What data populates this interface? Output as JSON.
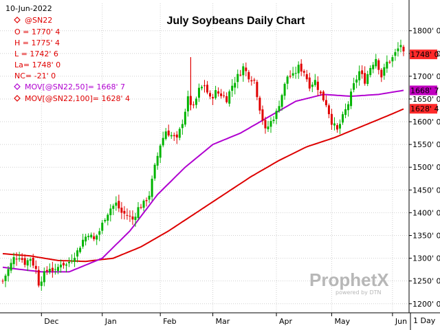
{
  "chart_data": {
    "type": "candlestick",
    "title": "July Soybeans Daily Chart",
    "date": "10-Jun-2022",
    "symbol": "@SN22",
    "open": "O = 1770' 4",
    "high": "H = 1775' 4",
    "low": "L = 1742' 6",
    "last": "La= 1748' 0",
    "net_change": "NC= -21' 0",
    "mov50_label": "MOV[@SN22,50]= 1668' 7",
    "mov100_label": "MOV[@SN22,100]= 1628' 4",
    "ylim": [
      1180,
      1860
    ],
    "y_ticks": [
      {
        "value": 1200,
        "label": "1200' 0"
      },
      {
        "value": 1250,
        "label": "1250' 0"
      },
      {
        "value": 1300,
        "label": "1300' 0"
      },
      {
        "value": 1350,
        "label": "1350' 0"
      },
      {
        "value": 1400,
        "label": "1400' 0"
      },
      {
        "value": 1450,
        "label": "1450' 0"
      },
      {
        "value": 1500,
        "label": "1500' 0"
      },
      {
        "value": 1550,
        "label": "1550' 0"
      },
      {
        "value": 1600,
        "label": "1600' 0"
      },
      {
        "value": 1650,
        "label": "1650' 0"
      },
      {
        "value": 1700,
        "label": "1700' 0"
      },
      {
        "value": 1750,
        "label": "1750' 0"
      },
      {
        "value": 1800,
        "label": "1800' 0"
      }
    ],
    "x_ticks": [
      {
        "index": 14,
        "label": "Dec"
      },
      {
        "index": 36,
        "label": "Jan"
      },
      {
        "index": 57,
        "label": "Feb"
      },
      {
        "index": 76,
        "label": "Mar"
      },
      {
        "index": 99,
        "label": "Apr"
      },
      {
        "index": 119,
        "label": "May"
      },
      {
        "index": 141,
        "label": "Jun"
      }
    ],
    "period_label": "1 Day",
    "price_tags": [
      {
        "value": 1748,
        "label": "1748' 0",
        "color": "#ff2a2a"
      },
      {
        "value": 1668.875,
        "label": "1668' 7",
        "color": "#c000c0"
      },
      {
        "value": 1628.5,
        "label": "1628' 4",
        "color": "#ff2a2a"
      }
    ],
    "up_color": "#00b400",
    "down_color": "#e00000",
    "mov50_color": "#b000d0",
    "mov100_color": "#dd0000",
    "close_anchors": [
      [
        0,
        1250
      ],
      [
        2,
        1275
      ],
      [
        4,
        1300
      ],
      [
        6,
        1305
      ],
      [
        8,
        1290
      ],
      [
        10,
        1300
      ],
      [
        12,
        1275
      ],
      [
        13,
        1245
      ],
      [
        15,
        1265
      ],
      [
        17,
        1280
      ],
      [
        19,
        1270
      ],
      [
        21,
        1290
      ],
      [
        23,
        1285
      ],
      [
        25,
        1300
      ],
      [
        27,
        1315
      ],
      [
        29,
        1340
      ],
      [
        31,
        1355
      ],
      [
        33,
        1340
      ],
      [
        35,
        1360
      ],
      [
        37,
        1390
      ],
      [
        39,
        1410
      ],
      [
        41,
        1420
      ],
      [
        43,
        1400
      ],
      [
        45,
        1395
      ],
      [
        47,
        1385
      ],
      [
        49,
        1410
      ],
      [
        51,
        1420
      ],
      [
        53,
        1440
      ],
      [
        55,
        1500
      ],
      [
        57,
        1550
      ],
      [
        59,
        1580
      ],
      [
        61,
        1570
      ],
      [
        63,
        1560
      ],
      [
        65,
        1600
      ],
      [
        67,
        1650
      ],
      [
        69,
        1630
      ],
      [
        71,
        1670
      ],
      [
        73,
        1680
      ],
      [
        75,
        1650
      ],
      [
        77,
        1665
      ],
      [
        79,
        1660
      ],
      [
        81,
        1650
      ],
      [
        83,
        1680
      ],
      [
        85,
        1700
      ],
      [
        87,
        1720
      ],
      [
        89,
        1700
      ],
      [
        91,
        1690
      ],
      [
        93,
        1630
      ],
      [
        95,
        1580
      ],
      [
        97,
        1600
      ],
      [
        99,
        1620
      ],
      [
        101,
        1660
      ],
      [
        103,
        1700
      ],
      [
        105,
        1700
      ],
      [
        107,
        1720
      ],
      [
        109,
        1710
      ],
      [
        111,
        1680
      ],
      [
        113,
        1690
      ],
      [
        115,
        1660
      ],
      [
        117,
        1640
      ],
      [
        119,
        1600
      ],
      [
        121,
        1580
      ],
      [
        123,
        1610
      ],
      [
        125,
        1640
      ],
      [
        127,
        1680
      ],
      [
        129,
        1710
      ],
      [
        131,
        1690
      ],
      [
        133,
        1720
      ],
      [
        135,
        1740
      ],
      [
        137,
        1700
      ],
      [
        139,
        1730
      ],
      [
        141,
        1740
      ],
      [
        143,
        1760
      ],
      [
        144,
        1770
      ],
      [
        145,
        1748
      ]
    ],
    "mov50_anchors": [
      [
        0,
        1280
      ],
      [
        14,
        1270
      ],
      [
        24,
        1270
      ],
      [
        36,
        1300
      ],
      [
        46,
        1360
      ],
      [
        56,
        1440
      ],
      [
        66,
        1500
      ],
      [
        76,
        1550
      ],
      [
        86,
        1575
      ],
      [
        96,
        1610
      ],
      [
        106,
        1645
      ],
      [
        116,
        1660
      ],
      [
        126,
        1656
      ],
      [
        136,
        1660
      ],
      [
        145,
        1669
      ]
    ],
    "mov100_anchors": [
      [
        0,
        1310
      ],
      [
        10,
        1305
      ],
      [
        20,
        1295
      ],
      [
        30,
        1293
      ],
      [
        40,
        1300
      ],
      [
        50,
        1325
      ],
      [
        60,
        1360
      ],
      [
        70,
        1400
      ],
      [
        80,
        1440
      ],
      [
        90,
        1480
      ],
      [
        100,
        1515
      ],
      [
        110,
        1545
      ],
      [
        120,
        1565
      ],
      [
        130,
        1590
      ],
      [
        140,
        1615
      ],
      [
        145,
        1628
      ]
    ]
  },
  "watermark": {
    "brand": "ProphetX",
    "sub": "powered by DTN"
  }
}
